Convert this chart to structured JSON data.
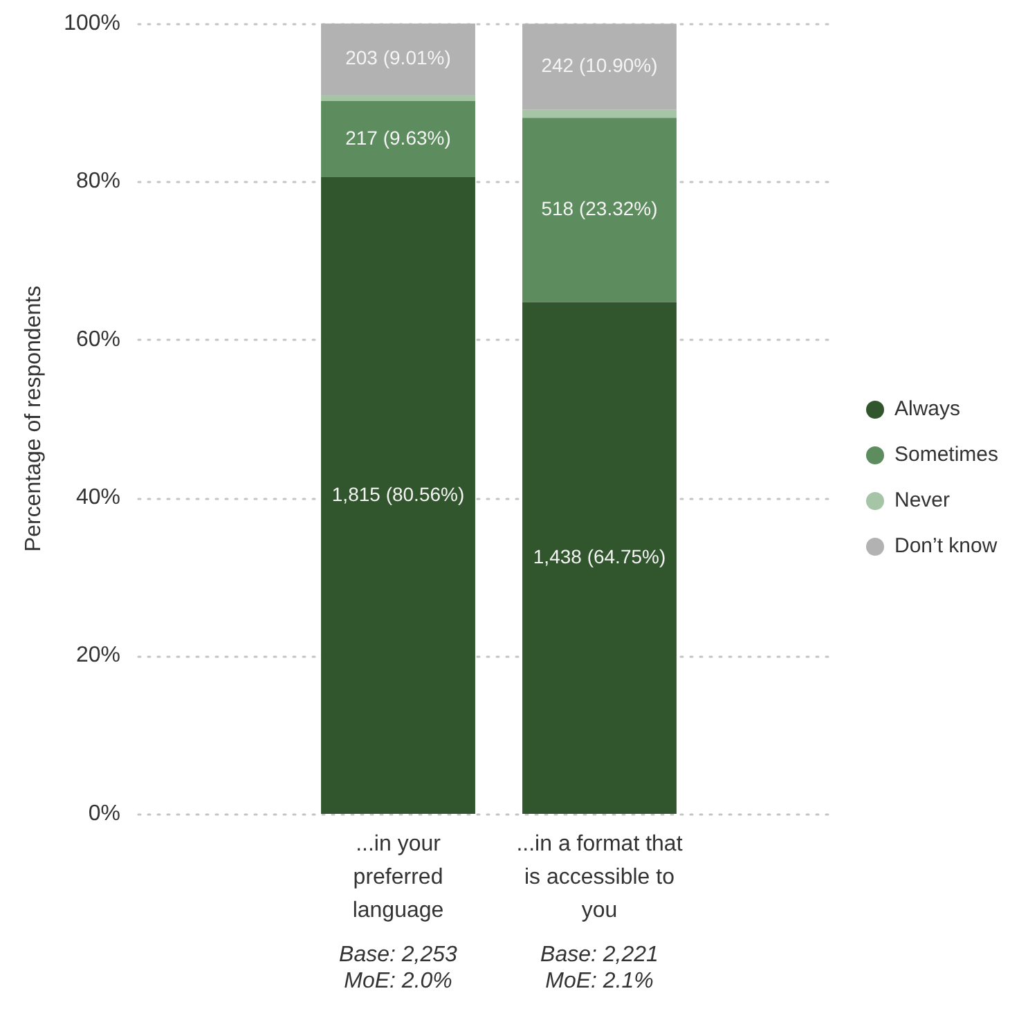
{
  "chart_data": {
    "type": "bar",
    "stacked": true,
    "ylabel": "Percentage of respondents",
    "categories": [
      "...in your preferred language",
      "...in a format that is accessible to you"
    ],
    "series": [
      {
        "name": "Always",
        "color": "#31552c",
        "values": [
          80.56,
          64.75
        ],
        "value_labels": [
          "1,815 (80.56%)",
          "1,438 (64.75%)"
        ]
      },
      {
        "name": "Sometimes",
        "color": "#5d8c5e",
        "values": [
          9.63,
          23.32
        ],
        "value_labels": [
          "217 (9.63%)",
          "518 (23.32%)"
        ]
      },
      {
        "name": "Never",
        "color": "#a6c5a7",
        "values": [
          0.8,
          1
        ]
      },
      {
        "name": "Don’t know",
        "color": "#b2b2b2",
        "values": [
          9.01,
          10.9
        ],
        "value_labels": [
          "203 (9.01%)",
          "242 (10.90%)"
        ]
      }
    ],
    "ylim": [
      0,
      100
    ],
    "yticks": [
      {
        "value": 0,
        "label": "0%"
      },
      {
        "value": 20,
        "label": "20%"
      },
      {
        "value": 40,
        "label": "40%"
      },
      {
        "value": 60,
        "label": "60%"
      },
      {
        "value": 80,
        "label": "80%"
      },
      {
        "value": 100,
        "label": "100%"
      }
    ],
    "grid": "y",
    "legend": "right",
    "annotations": [
      "Base: 2,253\nMoE: 2.0%",
      "Base: 2,221\nMoE: 2.1%"
    ]
  }
}
